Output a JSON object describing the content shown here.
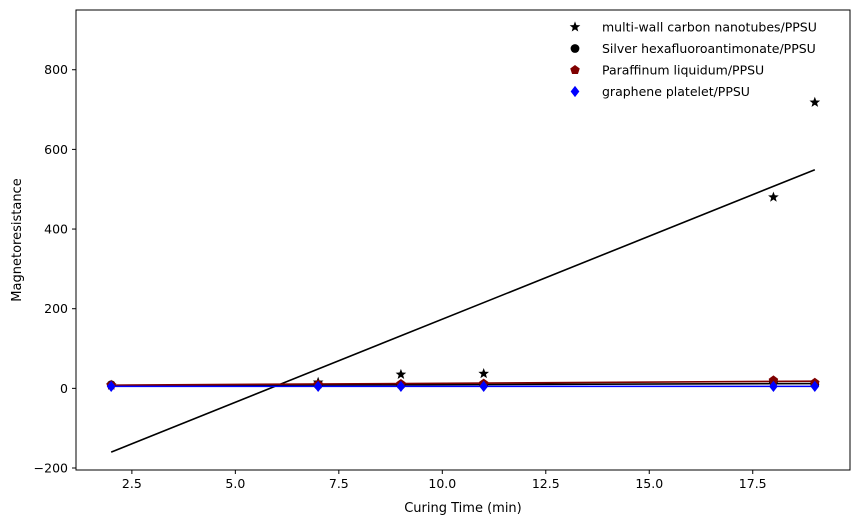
{
  "chart_data": {
    "type": "scatter",
    "title": "",
    "xlabel": "Curing Time (min)",
    "ylabel": "Magnetoresistance",
    "xlim": [
      1.15,
      19.85
    ],
    "ylim": [
      -205,
      950
    ],
    "xticks": [
      2.5,
      5.0,
      7.5,
      10.0,
      12.5,
      15.0,
      17.5
    ],
    "xtick_labels": [
      "2.5",
      "5.0",
      "7.5",
      "10.0",
      "12.5",
      "15.0",
      "17.5"
    ],
    "yticks": [
      -200,
      0,
      200,
      400,
      600,
      800
    ],
    "ytick_labels": [
      "−200",
      "0",
      "200",
      "400",
      "600",
      "800"
    ],
    "grid": false,
    "legend_position": "top-right",
    "series": [
      {
        "name": "multi-wall carbon nanotubes/PPSU",
        "marker": "star",
        "color": "#000000",
        "x": [
          2,
          7,
          9,
          11,
          18,
          19
        ],
        "y": [
          8,
          15,
          35,
          37,
          480,
          718
        ],
        "fit": {
          "x": [
            2,
            19
          ],
          "y": [
            -160,
            549
          ],
          "color": "#000000"
        }
      },
      {
        "name": "Silver hexafluoroantimonate/PPSU",
        "marker": "circle",
        "color": "#000000",
        "x": [
          2,
          7,
          9,
          11,
          18,
          19
        ],
        "y": [
          9,
          8,
          8,
          9,
          16,
          10
        ],
        "fit": {
          "x": [
            2,
            19
          ],
          "y": [
            7,
            12
          ],
          "color": "#000000"
        }
      },
      {
        "name": "Paraffinum liquidum/PPSU",
        "marker": "pentagon",
        "color": "#800000",
        "x": [
          2,
          7,
          9,
          11,
          18,
          19
        ],
        "y": [
          8,
          10,
          11,
          12,
          20,
          14
        ],
        "fit": {
          "x": [
            2,
            19
          ],
          "y": [
            8,
            18
          ],
          "color": "#800000"
        }
      },
      {
        "name": "graphene platelet/PPSU",
        "marker": "diamond",
        "color": "#0000ff",
        "x": [
          2,
          7,
          9,
          11,
          18,
          19
        ],
        "y": [
          5,
          5,
          5,
          5,
          5,
          5
        ],
        "fit": {
          "x": [
            2,
            19
          ],
          "y": [
            5,
            5
          ],
          "color": "#0000ff"
        }
      }
    ]
  }
}
